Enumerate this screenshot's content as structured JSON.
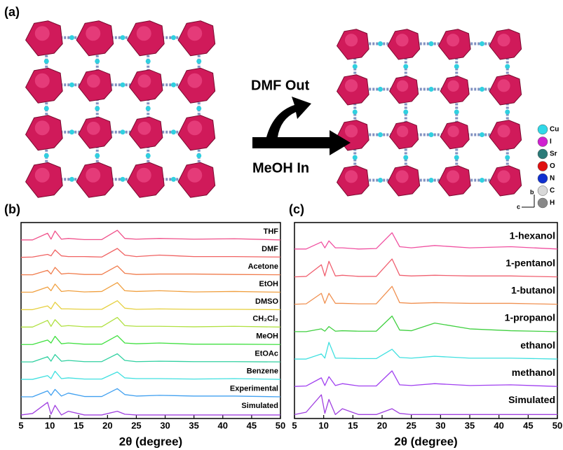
{
  "panel_a": {
    "label": "(a)",
    "arrow_top": "DMF Out",
    "arrow_bottom": "MeOH In",
    "atoms": [
      "Cu",
      "I",
      "Sr",
      "O",
      "N",
      "C",
      "H"
    ],
    "axes": [
      "b",
      "c"
    ]
  },
  "chart_data": [
    {
      "type": "line",
      "panel": "(b)",
      "xlabel": "2θ (degree)",
      "xlim": [
        5,
        50
      ],
      "xticks": [
        5,
        10,
        15,
        20,
        25,
        30,
        35,
        40,
        45,
        50
      ],
      "x": [
        5,
        7,
        9.6,
        10.2,
        10.9,
        12,
        13.2,
        16,
        19,
        21.7,
        23,
        25,
        29,
        35,
        42,
        50
      ],
      "series": [
        {
          "name": "THF",
          "color": "#f0508a",
          "values": [
            0.1,
            0.1,
            0.55,
            0.15,
            0.7,
            0.15,
            0.2,
            0.12,
            0.12,
            0.75,
            0.2,
            0.15,
            0.2,
            0.15,
            0.18,
            0.1
          ]
        },
        {
          "name": "DMF",
          "color": "#f06262",
          "values": [
            0.1,
            0.12,
            0.3,
            0.2,
            0.6,
            0.2,
            0.15,
            0.15,
            0.12,
            0.7,
            0.25,
            0.15,
            0.25,
            0.15,
            0.15,
            0.12
          ]
        },
        {
          "name": "Acetone",
          "color": "#f07c4c",
          "values": [
            0.1,
            0.1,
            0.4,
            0.15,
            0.6,
            0.15,
            0.2,
            0.12,
            0.12,
            0.7,
            0.2,
            0.12,
            0.15,
            0.15,
            0.12,
            0.1
          ]
        },
        {
          "name": "EtOH",
          "color": "#f0a040",
          "values": [
            0.1,
            0.1,
            0.45,
            0.2,
            0.65,
            0.15,
            0.2,
            0.12,
            0.15,
            0.75,
            0.2,
            0.15,
            0.2,
            0.12,
            0.15,
            0.1
          ]
        },
        {
          "name": "DMSO",
          "color": "#e6d040",
          "values": [
            0.1,
            0.1,
            0.35,
            0.15,
            0.6,
            0.15,
            0.15,
            0.12,
            0.12,
            0.7,
            0.2,
            0.12,
            0.15,
            0.12,
            0.12,
            0.1
          ]
        },
        {
          "name": "CH₂Cl₂",
          "color": "#b0e040",
          "values": [
            0.1,
            0.1,
            0.55,
            0.15,
            0.6,
            0.15,
            0.2,
            0.12,
            0.12,
            0.75,
            0.2,
            0.15,
            0.15,
            0.12,
            0.15,
            0.1
          ]
        },
        {
          "name": "MeOH",
          "color": "#40e040",
          "values": [
            0.1,
            0.1,
            0.4,
            0.2,
            0.65,
            0.15,
            0.2,
            0.12,
            0.12,
            0.7,
            0.2,
            0.15,
            0.2,
            0.12,
            0.12,
            0.1
          ]
        },
        {
          "name": "EtOAc",
          "color": "#30d0a0",
          "values": [
            0.1,
            0.1,
            0.45,
            0.15,
            0.6,
            0.15,
            0.2,
            0.12,
            0.12,
            0.65,
            0.2,
            0.12,
            0.15,
            0.12,
            0.12,
            0.1
          ]
        },
        {
          "name": "Benzene",
          "color": "#40e0e0",
          "values": [
            0.1,
            0.1,
            0.35,
            0.15,
            0.65,
            0.15,
            0.2,
            0.12,
            0.12,
            0.6,
            0.2,
            0.15,
            0.15,
            0.12,
            0.15,
            0.1
          ]
        },
        {
          "name": "Experimental",
          "color": "#40a0f0",
          "values": [
            0.1,
            0.1,
            0.5,
            0.2,
            0.6,
            0.15,
            0.35,
            0.12,
            0.12,
            0.65,
            0.25,
            0.15,
            0.2,
            0.15,
            0.15,
            0.1
          ]
        },
        {
          "name": "Simulated",
          "color": "#a040e0",
          "values": [
            0.05,
            0.15,
            0.9,
            0.1,
            0.7,
            0.05,
            0.3,
            0.05,
            0.05,
            0.3,
            0.1,
            0.05,
            0.05,
            0.05,
            0.05,
            0.05
          ]
        }
      ]
    },
    {
      "type": "line",
      "panel": "(c)",
      "xlabel": "2θ (degree)",
      "xlim": [
        5,
        50
      ],
      "xticks": [
        5,
        10,
        15,
        20,
        25,
        30,
        35,
        40,
        45,
        50
      ],
      "x": [
        5,
        7,
        9.6,
        10.2,
        10.9,
        12,
        13.2,
        16,
        19,
        21.7,
        23,
        25,
        29,
        35,
        42,
        50
      ],
      "series": [
        {
          "name": "1-hexanol",
          "color": "#f050a0",
          "values": [
            0.1,
            0.1,
            0.4,
            0.15,
            0.45,
            0.15,
            0.15,
            0.1,
            0.12,
            0.8,
            0.2,
            0.15,
            0.25,
            0.15,
            0.2,
            0.1
          ]
        },
        {
          "name": "1-pentanol",
          "color": "#f06070",
          "values": [
            0.08,
            0.1,
            0.6,
            0.12,
            0.75,
            0.12,
            0.15,
            0.1,
            0.1,
            0.85,
            0.15,
            0.12,
            0.15,
            0.12,
            0.12,
            0.08
          ]
        },
        {
          "name": "1-butanol",
          "color": "#f09050",
          "values": [
            0.08,
            0.1,
            0.55,
            0.12,
            0.55,
            0.12,
            0.12,
            0.1,
            0.1,
            0.85,
            0.15,
            0.12,
            0.15,
            0.12,
            0.12,
            0.08
          ]
        },
        {
          "name": "1-propanol",
          "color": "#40d040",
          "values": [
            0.08,
            0.08,
            0.2,
            0.1,
            0.3,
            0.1,
            0.12,
            0.1,
            0.1,
            0.75,
            0.15,
            0.12,
            0.45,
            0.2,
            0.12,
            0.08
          ]
        },
        {
          "name": "ethanol",
          "color": "#40e0e0",
          "values": [
            0.08,
            0.08,
            0.3,
            0.12,
            0.8,
            0.12,
            0.12,
            0.1,
            0.1,
            0.5,
            0.15,
            0.12,
            0.2,
            0.12,
            0.12,
            0.08
          ]
        },
        {
          "name": "methanol",
          "color": "#a040f0",
          "values": [
            0.08,
            0.1,
            0.45,
            0.12,
            0.5,
            0.12,
            0.2,
            0.1,
            0.1,
            0.75,
            0.15,
            0.12,
            0.2,
            0.12,
            0.15,
            0.08
          ]
        },
        {
          "name": "Simulated",
          "color": "#a040e0",
          "values": [
            0.05,
            0.15,
            0.9,
            0.1,
            0.7,
            0.05,
            0.3,
            0.05,
            0.05,
            0.3,
            0.1,
            0.05,
            0.05,
            0.05,
            0.05,
            0.05
          ]
        }
      ]
    }
  ]
}
